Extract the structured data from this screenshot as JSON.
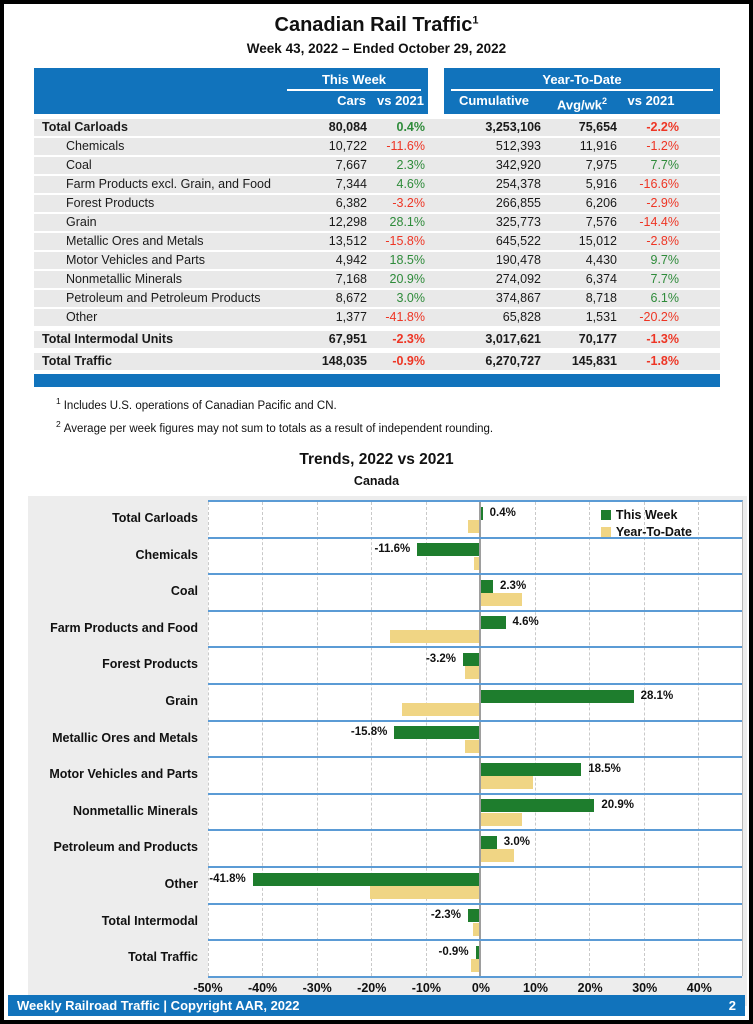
{
  "page": {
    "title": "Canadian Rail Traffic",
    "title_sup": "1",
    "subtitle": "Week 43, 2022 – Ended October 29, 2022"
  },
  "table": {
    "header": {
      "this_week": "This Week",
      "ytd": "Year-To-Date",
      "cars": "Cars",
      "tw_vs": "vs 2021",
      "cumulative": "Cumulative",
      "avg": "Avg/wk",
      "avg_sup": "2",
      "ytd_vs": "vs 2021"
    },
    "rows": [
      {
        "label": "Total Carloads",
        "total": true,
        "cars": "80,084",
        "tw_pct": "0.4%",
        "cumulative": "3,253,106",
        "avg_wk": "75,654",
        "ytd_pct": "-2.2%"
      },
      {
        "label": "Chemicals",
        "total": false,
        "cars": "10,722",
        "tw_pct": "-11.6%",
        "cumulative": "512,393",
        "avg_wk": "11,916",
        "ytd_pct": "-1.2%"
      },
      {
        "label": "Coal",
        "total": false,
        "cars": "7,667",
        "tw_pct": "2.3%",
        "cumulative": "342,920",
        "avg_wk": "7,975",
        "ytd_pct": "7.7%"
      },
      {
        "label": "Farm Products excl. Grain, and Food",
        "total": false,
        "cars": "7,344",
        "tw_pct": "4.6%",
        "cumulative": "254,378",
        "avg_wk": "5,916",
        "ytd_pct": "-16.6%"
      },
      {
        "label": "Forest Products",
        "total": false,
        "cars": "6,382",
        "tw_pct": "-3.2%",
        "cumulative": "266,855",
        "avg_wk": "6,206",
        "ytd_pct": "-2.9%"
      },
      {
        "label": "Grain",
        "total": false,
        "cars": "12,298",
        "tw_pct": "28.1%",
        "cumulative": "325,773",
        "avg_wk": "7,576",
        "ytd_pct": "-14.4%"
      },
      {
        "label": "Metallic Ores and Metals",
        "total": false,
        "cars": "13,512",
        "tw_pct": "-15.8%",
        "cumulative": "645,522",
        "avg_wk": "15,012",
        "ytd_pct": "-2.8%"
      },
      {
        "label": "Motor Vehicles and Parts",
        "total": false,
        "cars": "4,942",
        "tw_pct": "18.5%",
        "cumulative": "190,478",
        "avg_wk": "4,430",
        "ytd_pct": "9.7%"
      },
      {
        "label": "Nonmetallic Minerals",
        "total": false,
        "cars": "7,168",
        "tw_pct": "20.9%",
        "cumulative": "274,092",
        "avg_wk": "6,374",
        "ytd_pct": "7.7%"
      },
      {
        "label": "Petroleum and Petroleum Products",
        "total": false,
        "cars": "8,672",
        "tw_pct": "3.0%",
        "cumulative": "374,867",
        "avg_wk": "8,718",
        "ytd_pct": "6.1%"
      },
      {
        "label": "Other",
        "total": false,
        "cars": "1,377",
        "tw_pct": "-41.8%",
        "cumulative": "65,828",
        "avg_wk": "1,531",
        "ytd_pct": "-20.2%"
      },
      {
        "label": "Total Intermodal Units",
        "total": true,
        "cars": "67,951",
        "tw_pct": "-2.3%",
        "cumulative": "3,017,621",
        "avg_wk": "70,177",
        "ytd_pct": "-1.3%"
      },
      {
        "label": "Total Traffic",
        "total": true,
        "cars": "148,035",
        "tw_pct": "-0.9%",
        "cumulative": "6,270,727",
        "avg_wk": "145,831",
        "ytd_pct": "-1.8%"
      }
    ]
  },
  "footnotes": [
    {
      "sup": "1",
      "text": "Includes U.S. operations of Canadian Pacific and CN."
    },
    {
      "sup": "2",
      "text": "Average per week figures may not sum to totals as a result of independent rounding."
    }
  ],
  "chart_data": {
    "type": "bar",
    "orientation": "horizontal",
    "title": "Trends, 2022 vs 2021",
    "subtitle": "Canada",
    "categories": [
      "Total Carloads",
      "Chemicals",
      "Coal",
      "Farm Products and Food",
      "Forest Products",
      "Grain",
      "Metallic Ores and Metals",
      "Motor Vehicles and Parts",
      "Nonmetallic Minerals",
      "Petroleum and Products",
      "Other",
      "Total Intermodal",
      "Total Traffic"
    ],
    "series": [
      {
        "name": "This Week",
        "color": "#1e7d2d",
        "values": [
          0.4,
          -11.6,
          2.3,
          4.6,
          -3.2,
          28.1,
          -15.8,
          18.5,
          20.9,
          3.0,
          -41.8,
          -2.3,
          -0.9
        ]
      },
      {
        "name": "Year-To-Date",
        "color": "#f0d584",
        "values": [
          -2.2,
          -1.2,
          7.7,
          -16.6,
          -2.9,
          -14.4,
          -2.8,
          9.7,
          7.7,
          6.1,
          -20.2,
          -1.3,
          -1.8
        ]
      }
    ],
    "bar_labels": [
      "0.4%",
      "-11.6%",
      "2.3%",
      "4.6%",
      "-3.2%",
      "28.1%",
      "-15.8%",
      "18.5%",
      "20.9%",
      "3.0%",
      "-41.8%",
      "-2.3%",
      "-0.9%"
    ],
    "xlim": [
      -50,
      48
    ],
    "xticks": [
      -50,
      -40,
      -30,
      -20,
      -10,
      0,
      10,
      20,
      30,
      40
    ],
    "xtick_labels": [
      "-50%",
      "-40%",
      "-30%",
      "-20%",
      "-10%",
      "0%",
      "10%",
      "20%",
      "30%",
      "40%"
    ],
    "grid": "vertical-dashed",
    "legend_position": "top-right"
  },
  "footer": {
    "left": "Weekly Railroad Traffic | Copyright AAR, 2022",
    "page": "2"
  },
  "colors": {
    "header_blue": "#1173bc",
    "grid_blue": "#5b9bd5",
    "positive_green": "#2e8b3a",
    "negative_red": "#ee3524",
    "bar_green": "#1e7d2d",
    "bar_tan": "#f0d584",
    "chart_bg": "#ededed",
    "row_gray": "#e9e9e9"
  }
}
